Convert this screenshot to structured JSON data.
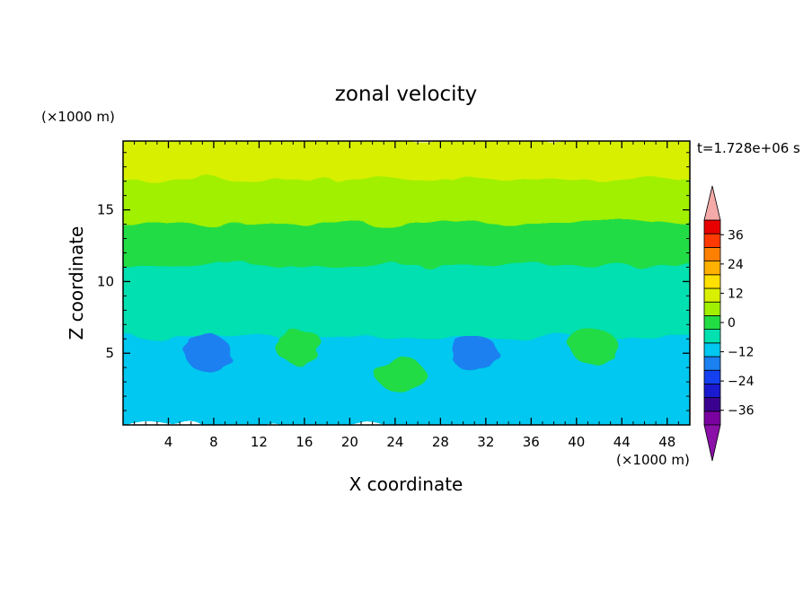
{
  "chart_data": {
    "type": "heatmap",
    "title": "zonal velocity",
    "time_label": "t=1.728e+06 s",
    "xlabel": "X coordinate",
    "ylabel": "Z coordinate",
    "x_unit": "(×1000 m)",
    "y_unit": "(×1000 m)",
    "xlim": [
      0,
      50
    ],
    "ylim": [
      0,
      19.8
    ],
    "x_ticks": [
      4,
      8,
      12,
      16,
      20,
      24,
      28,
      32,
      36,
      40,
      44,
      48
    ],
    "x_tick_labels": [
      "4",
      "8",
      "12",
      "16",
      "20",
      "24",
      "28",
      "32",
      "36",
      "40",
      "44",
      "48"
    ],
    "y_ticks": [
      5,
      10,
      15
    ],
    "y_tick_labels": [
      "5",
      "10",
      "15"
    ],
    "grid": false,
    "colorbar": {
      "levels": [
        -42,
        -36,
        -30,
        -24,
        -18,
        -12,
        -6,
        0,
        6,
        12,
        18,
        24,
        30,
        36,
        42
      ],
      "tick_values": [
        36,
        24,
        12,
        0,
        -12,
        -24,
        -36
      ],
      "tick_labels": [
        "36",
        "24",
        "12",
        "0",
        "−12",
        "−24",
        "−36"
      ],
      "colors": [
        "#7a00a0",
        "#3a0090",
        "#1a1ad0",
        "#1540f0",
        "#1b80f0",
        "#00c8f0",
        "#00e0b0",
        "#22dc44",
        "#a0f000",
        "#d8f000",
        "#ffe000",
        "#ffb000",
        "#ff8000",
        "#ff3a00",
        "#e80000"
      ],
      "under_color": "#8a10a8",
      "over_color": "#f4aaa8"
    },
    "features": [
      {
        "kind": "band",
        "z_range": [
          17,
          19.8
        ],
        "value": 15
      },
      {
        "kind": "band",
        "z_range": [
          14,
          17
        ],
        "value": 9
      },
      {
        "kind": "band",
        "z_range": [
          11,
          14
        ],
        "value": 3
      },
      {
        "kind": "band",
        "z_range": [
          6,
          11
        ],
        "value": -3
      },
      {
        "kind": "band",
        "z_range": [
          0,
          6
        ],
        "value": -9
      },
      {
        "kind": "blob",
        "x": 7.5,
        "z": 5,
        "value": -18
      },
      {
        "kind": "blob",
        "x": 15.5,
        "z": 5.5,
        "value": 3
      },
      {
        "kind": "blob",
        "x": 24.5,
        "z": 3.5,
        "value": 3
      },
      {
        "kind": "blob",
        "x": 41.5,
        "z": 5.5,
        "value": 3
      },
      {
        "kind": "blob",
        "x": 31,
        "z": 5,
        "value": -15
      }
    ]
  }
}
